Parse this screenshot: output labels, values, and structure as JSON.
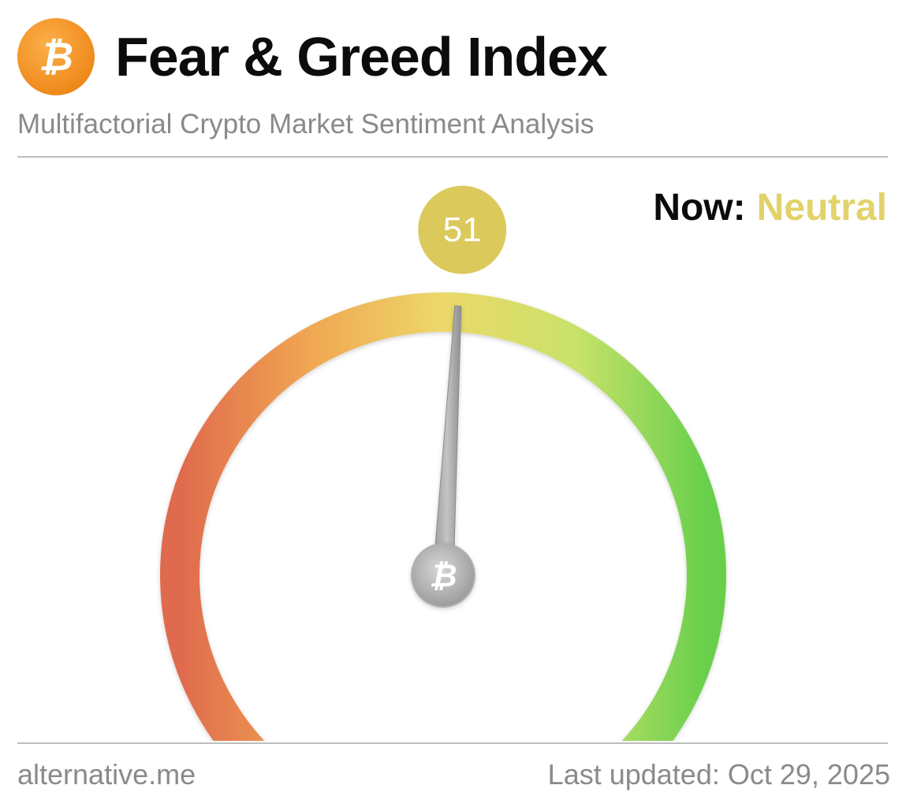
{
  "header": {
    "title": "Fear & Greed Index",
    "subtitle": "Multifactorial Crypto Market Sentiment Analysis",
    "logo_icon": "bitcoin-icon",
    "logo_glyph": "₿"
  },
  "now": {
    "label": "Now:",
    "value": "Neutral",
    "value_color": "#e2d26a"
  },
  "footer": {
    "site": "alternative.me",
    "updated": "Last updated: Oct 29, 2025"
  },
  "colors": {
    "extreme_fear": "#e06a4e",
    "fear": "#f0a752",
    "neutral": "#ecd86a",
    "greed": "#c9e26a",
    "extreme_greed": "#68cf4c",
    "needle": "#a8a8a8",
    "badge": "#dcc95c",
    "logo": "#f39422"
  },
  "chart_data": {
    "type": "gauge",
    "value": 51,
    "min": 0,
    "max": 100,
    "label": "51",
    "classification": "Neutral",
    "hub_icon": "bitcoin-icon",
    "hub_glyph": "₿"
  }
}
